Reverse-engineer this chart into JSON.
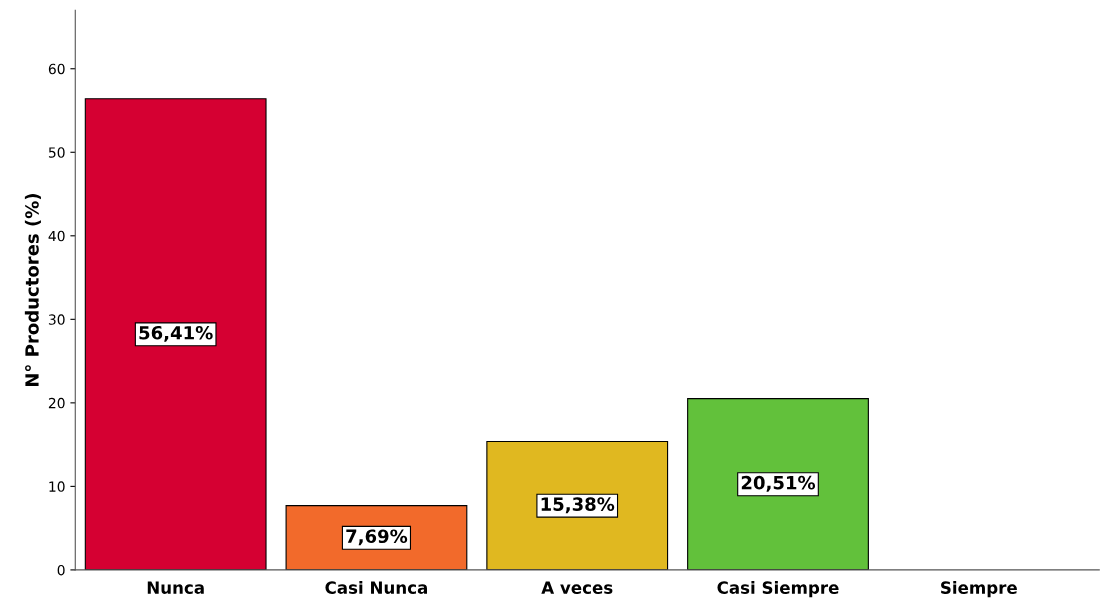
{
  "chart_data": {
    "type": "bar",
    "ylabel": "N° Productores (%)",
    "categories": [
      "Nunca",
      "Casi Nunca",
      "A veces",
      "Casi Siempre",
      "Siempre"
    ],
    "values": [
      56.41,
      7.69,
      15.38,
      20.51,
      null
    ],
    "colors": [
      "#d50032",
      "#f26a2b",
      "#e0b820",
      "#62c13b",
      null
    ],
    "value_labels": [
      "56,41%",
      "7,69%",
      "15,38%",
      "20,51%",
      null
    ],
    "ylim": [
      0,
      67
    ],
    "yticks": [
      0,
      10,
      20,
      30,
      40,
      50,
      60
    ],
    "grid": false
  }
}
